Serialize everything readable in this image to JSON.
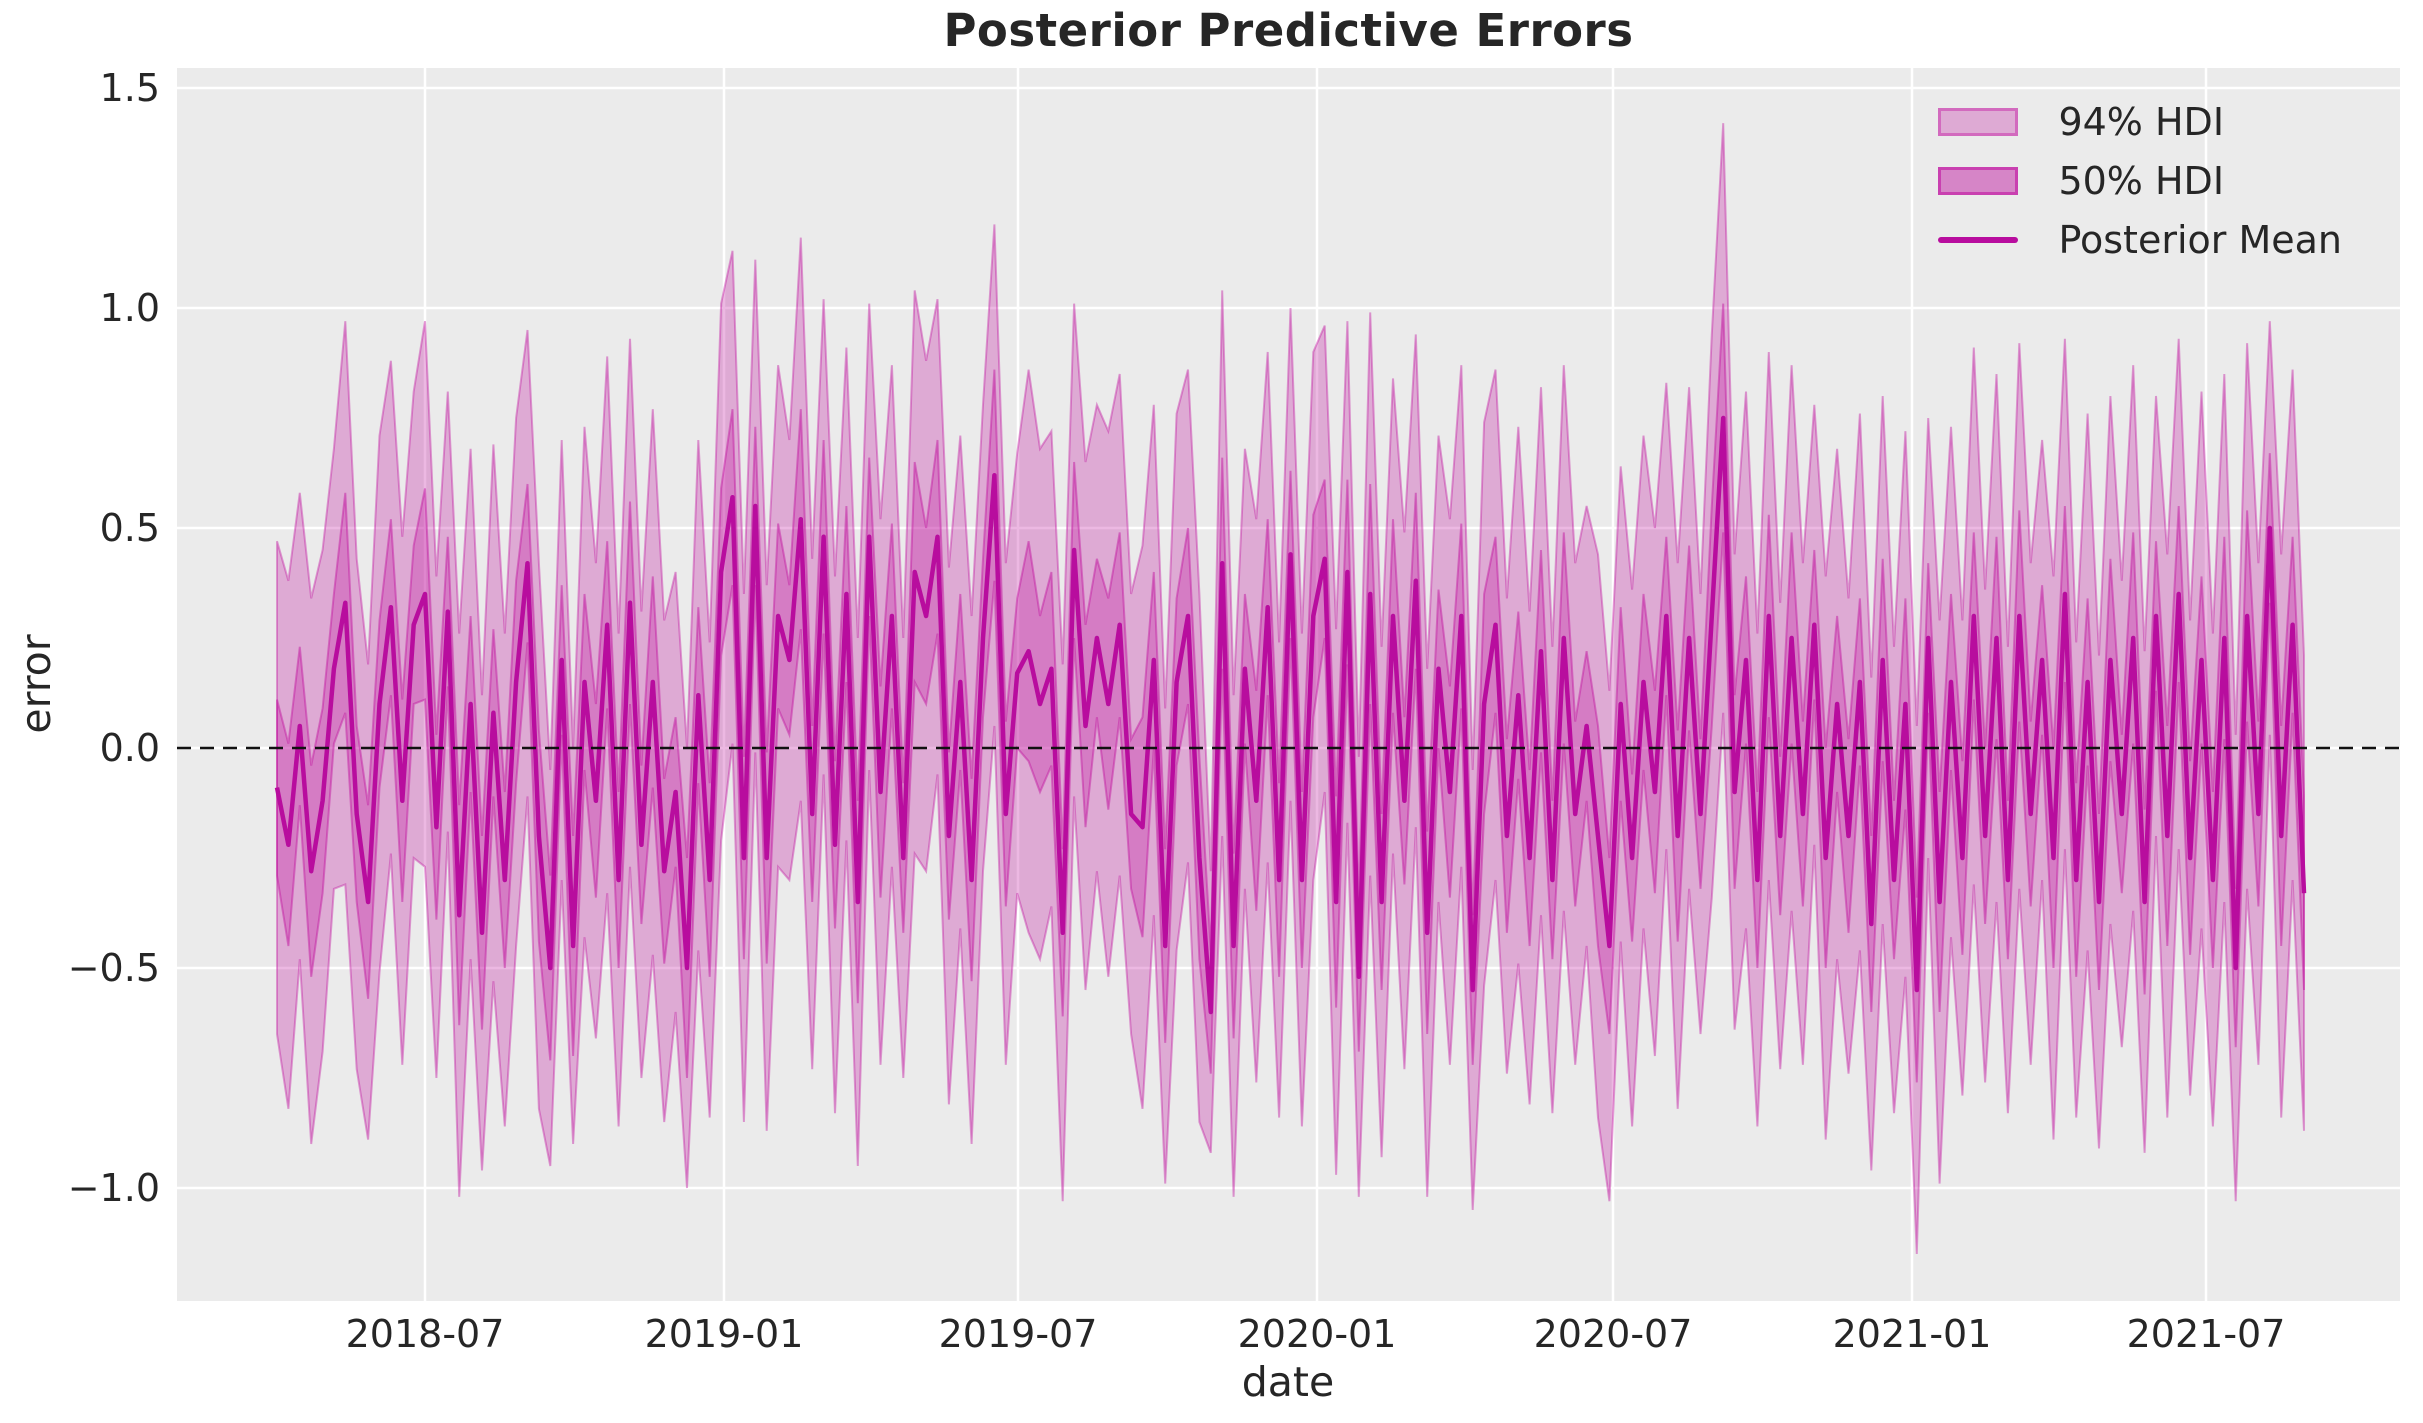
{
  "chart_data": {
    "type": "area",
    "title": "Posterior Predictive Errors",
    "xlabel": "date",
    "ylabel": "error",
    "grid": true,
    "plot_bg_color": "#ebebeb",
    "grid_color": "#ffffff",
    "colors": {
      "base": "#c013a0",
      "mean_line": "#b80d9e",
      "hdi_fill_opacity": 0.3,
      "zero_line": "#111111",
      "text": "#262626"
    },
    "reference_line_y": 0.0,
    "legend_position": "upper right",
    "legend": [
      {
        "label": "94% HDI",
        "type": "patch"
      },
      {
        "label": "50% HDI",
        "type": "patch"
      },
      {
        "label": "Posterior Mean",
        "type": "line"
      }
    ],
    "xticklabels": [
      "2018-07",
      "2019-01",
      "2019-07",
      "2020-01",
      "2020-07",
      "2021-01",
      "2021-07"
    ],
    "yticks": [
      1.5,
      1.0,
      0.5,
      0.0,
      -0.5,
      -1.0
    ],
    "yticklabels": [
      "1.5",
      "1.0",
      "0.5",
      "0.0",
      "−0.5",
      "−1.0"
    ],
    "ylim": [
      -1.26,
      1.54
    ],
    "x_start_date": "2018-04-01",
    "x_step_days": 7,
    "n_points": 179,
    "series": {
      "mean": [
        -0.09,
        -0.22,
        0.05,
        -0.28,
        -0.12,
        0.18,
        0.33,
        -0.15,
        -0.35,
        0.1,
        0.32,
        -0.12,
        0.28,
        0.35,
        -0.18,
        0.31,
        -0.38,
        0.1,
        -0.42,
        0.08,
        -0.3,
        0.15,
        0.42,
        -0.2,
        -0.5,
        0.2,
        -0.45,
        0.15,
        -0.12,
        0.28,
        -0.3,
        0.33,
        -0.22,
        0.15,
        -0.28,
        -0.1,
        -0.5,
        0.12,
        -0.3,
        0.4,
        0.57,
        -0.25,
        0.55,
        -0.25,
        0.3,
        0.2,
        0.52,
        -0.15,
        0.48,
        -0.22,
        0.35,
        -0.35,
        0.48,
        -0.1,
        0.3,
        -0.25,
        0.4,
        0.3,
        0.48,
        -0.2,
        0.15,
        -0.3,
        0.25,
        0.62,
        -0.15,
        0.17,
        0.22,
        0.1,
        0.18,
        -0.42,
        0.45,
        0.05,
        0.25,
        0.1,
        0.28,
        -0.15,
        -0.18,
        0.2,
        -0.45,
        0.15,
        0.3,
        -0.25,
        -0.6,
        0.42,
        -0.45,
        0.18,
        -0.12,
        0.32,
        -0.3,
        0.44,
        -0.3,
        0.3,
        0.43,
        -0.35,
        0.4,
        -0.52,
        0.35,
        -0.35,
        0.3,
        -0.12,
        0.38,
        -0.42,
        0.18,
        -0.1,
        0.3,
        -0.55,
        0.1,
        0.28,
        -0.2,
        0.12,
        -0.25,
        0.22,
        -0.3,
        0.25,
        -0.15,
        0.05,
        -0.2,
        -0.45,
        0.1,
        -0.25,
        0.15,
        -0.1,
        0.3,
        -0.2,
        0.25,
        -0.15,
        0.3,
        0.75,
        -0.1,
        0.2,
        -0.3,
        0.3,
        -0.2,
        0.25,
        -0.15,
        0.28,
        -0.25,
        0.1,
        -0.2,
        0.15,
        -0.4,
        0.2,
        -0.3,
        0.1,
        -0.55,
        0.25,
        -0.35,
        0.15,
        -0.25,
        0.3,
        -0.2,
        0.25,
        -0.3,
        0.3,
        -0.15,
        0.2,
        -0.25,
        0.35,
        -0.3,
        0.15,
        -0.35,
        0.2,
        -0.15,
        0.25,
        -0.35,
        0.3,
        -0.2,
        0.35,
        -0.25,
        0.2,
        -0.3,
        0.25,
        -0.5,
        0.3,
        -0.15,
        0.5,
        -0.2,
        0.28,
        -0.33
      ],
      "hdi50_halfwidth": [
        0.2,
        0.23,
        0.18,
        0.24,
        0.21,
        0.17,
        0.25,
        0.2,
        0.22,
        0.19,
        0.2,
        0.23,
        0.18,
        0.24,
        0.21,
        0.17,
        0.25,
        0.2,
        0.22,
        0.19,
        0.2,
        0.23,
        0.18,
        0.24,
        0.21,
        0.17,
        0.25,
        0.2,
        0.22,
        0.19,
        0.2,
        0.23,
        0.18,
        0.24,
        0.21,
        0.17,
        0.25,
        0.2,
        0.22,
        0.19,
        0.2,
        0.23,
        0.18,
        0.24,
        0.21,
        0.17,
        0.25,
        0.2,
        0.22,
        0.19,
        0.2,
        0.23,
        0.18,
        0.24,
        0.21,
        0.17,
        0.25,
        0.2,
        0.22,
        0.19,
        0.2,
        0.23,
        0.18,
        0.24,
        0.21,
        0.17,
        0.25,
        0.2,
        0.22,
        0.19,
        0.2,
        0.23,
        0.18,
        0.24,
        0.21,
        0.17,
        0.25,
        0.2,
        0.22,
        0.19,
        0.2,
        0.23,
        0.14,
        0.24,
        0.21,
        0.17,
        0.25,
        0.2,
        0.22,
        0.19,
        0.2,
        0.23,
        0.18,
        0.24,
        0.21,
        0.17,
        0.25,
        0.2,
        0.22,
        0.19,
        0.2,
        0.23,
        0.18,
        0.24,
        0.21,
        0.17,
        0.25,
        0.2,
        0.22,
        0.19,
        0.2,
        0.23,
        0.18,
        0.24,
        0.21,
        0.17,
        0.25,
        0.2,
        0.22,
        0.19,
        0.2,
        0.23,
        0.18,
        0.24,
        0.21,
        0.17,
        0.25,
        0.26,
        0.22,
        0.19,
        0.2,
        0.23,
        0.18,
        0.24,
        0.21,
        0.17,
        0.25,
        0.2,
        0.22,
        0.19,
        0.2,
        0.23,
        0.18,
        0.24,
        0.21,
        0.17,
        0.25,
        0.2,
        0.22,
        0.19,
        0.2,
        0.23,
        0.18,
        0.24,
        0.21,
        0.17,
        0.25,
        0.2,
        0.22,
        0.19,
        0.2,
        0.23,
        0.18,
        0.24,
        0.21,
        0.17,
        0.25,
        0.2,
        0.22,
        0.19,
        0.2,
        0.23,
        0.18,
        0.24,
        0.21,
        0.17,
        0.25,
        0.2,
        0.22
      ],
      "hdi94_halfwidth": [
        0.56,
        0.6,
        0.53,
        0.62,
        0.57,
        0.5,
        0.64,
        0.58,
        0.54,
        0.61,
        0.56,
        0.6,
        0.53,
        0.62,
        0.57,
        0.5,
        0.64,
        0.58,
        0.54,
        0.61,
        0.56,
        0.6,
        0.53,
        0.62,
        0.45,
        0.5,
        0.45,
        0.58,
        0.54,
        0.61,
        0.56,
        0.6,
        0.53,
        0.62,
        0.57,
        0.5,
        0.5,
        0.58,
        0.54,
        0.61,
        0.56,
        0.6,
        0.56,
        0.62,
        0.57,
        0.5,
        0.64,
        0.58,
        0.54,
        0.61,
        0.56,
        0.6,
        0.53,
        0.62,
        0.57,
        0.5,
        0.64,
        0.58,
        0.54,
        0.61,
        0.56,
        0.6,
        0.53,
        0.57,
        0.57,
        0.5,
        0.64,
        0.58,
        0.54,
        0.61,
        0.56,
        0.6,
        0.53,
        0.62,
        0.57,
        0.5,
        0.64,
        0.58,
        0.54,
        0.61,
        0.56,
        0.6,
        0.32,
        0.62,
        0.57,
        0.5,
        0.64,
        0.58,
        0.54,
        0.56,
        0.56,
        0.6,
        0.53,
        0.62,
        0.57,
        0.5,
        0.64,
        0.58,
        0.54,
        0.61,
        0.56,
        0.6,
        0.53,
        0.62,
        0.57,
        0.5,
        0.64,
        0.58,
        0.54,
        0.61,
        0.56,
        0.6,
        0.53,
        0.62,
        0.57,
        0.5,
        0.64,
        0.58,
        0.54,
        0.61,
        0.56,
        0.6,
        0.53,
        0.62,
        0.57,
        0.5,
        0.64,
        0.67,
        0.54,
        0.61,
        0.56,
        0.6,
        0.53,
        0.62,
        0.57,
        0.5,
        0.64,
        0.58,
        0.54,
        0.61,
        0.56,
        0.6,
        0.53,
        0.62,
        0.6,
        0.5,
        0.64,
        0.58,
        0.54,
        0.61,
        0.56,
        0.6,
        0.53,
        0.62,
        0.57,
        0.5,
        0.64,
        0.58,
        0.54,
        0.61,
        0.56,
        0.6,
        0.53,
        0.62,
        0.57,
        0.5,
        0.64,
        0.58,
        0.54,
        0.61,
        0.56,
        0.6,
        0.53,
        0.62,
        0.57,
        0.47,
        0.64,
        0.58,
        0.54
      ]
    }
  }
}
